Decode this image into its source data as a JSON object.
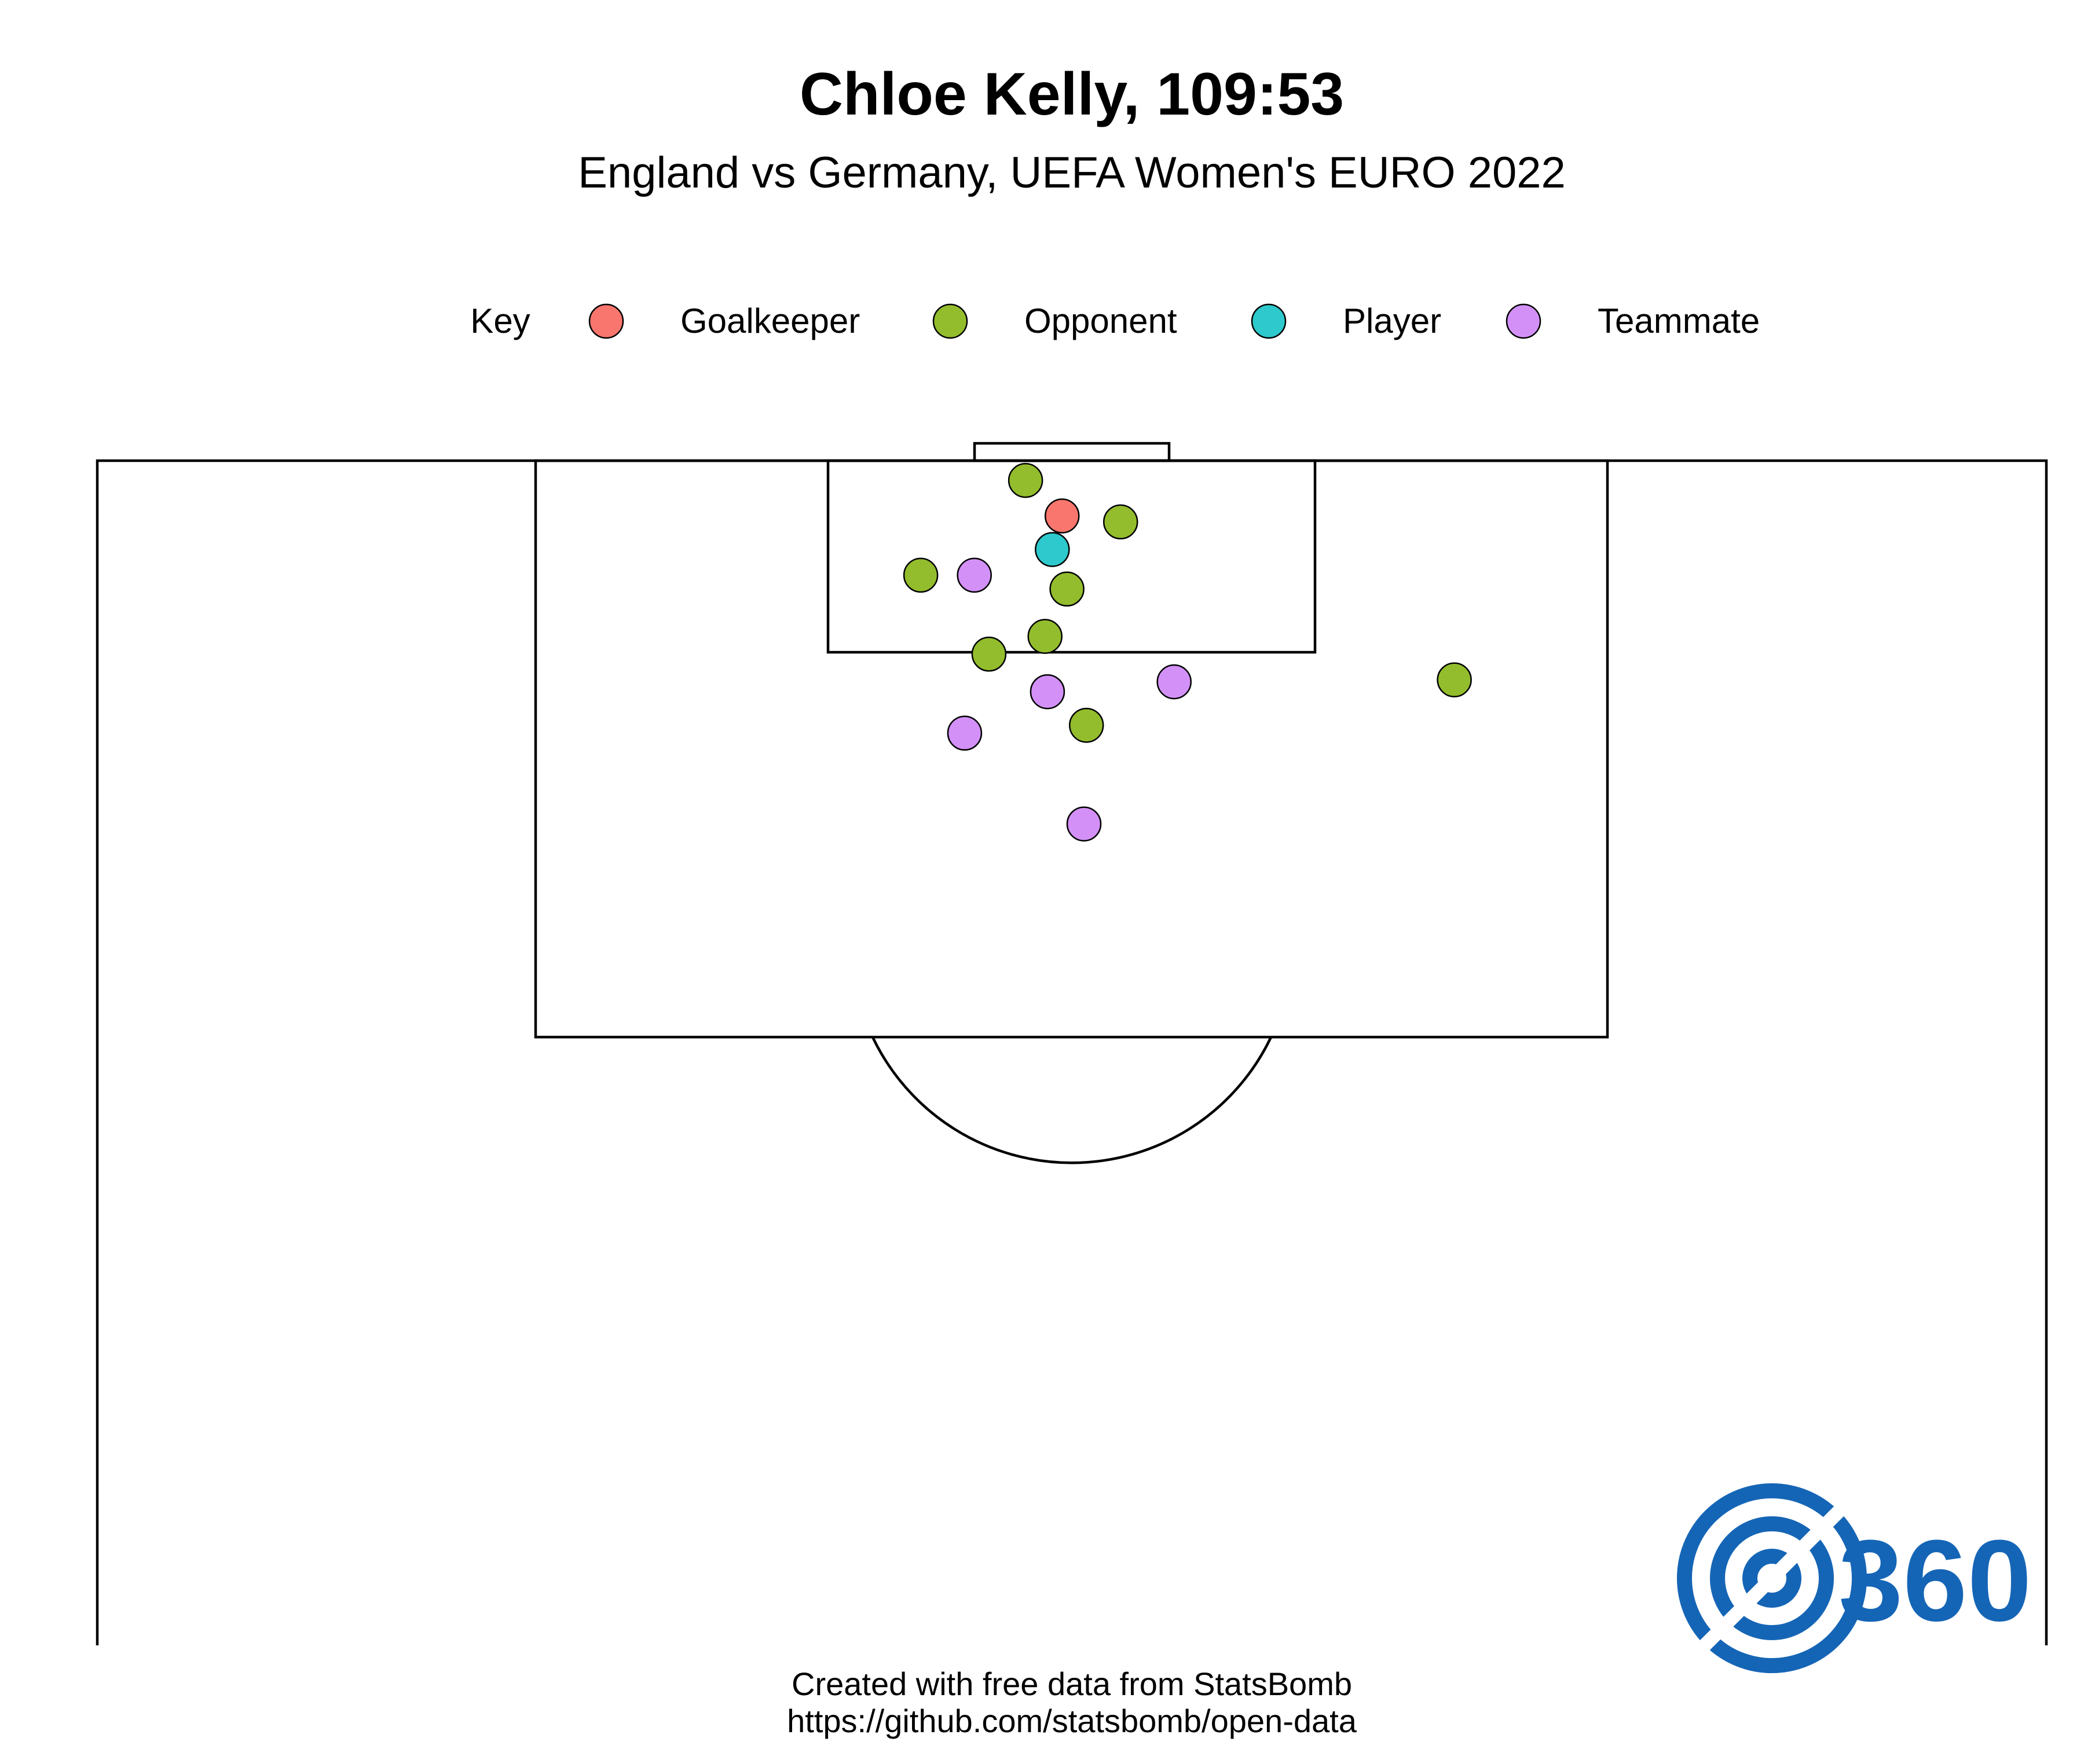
{
  "header": {
    "title": "Chloe Kelly, 109:53",
    "subtitle": "England vs Germany, UEFA Women's EURO 2022"
  },
  "legend": {
    "label": "Key",
    "items": [
      {
        "label": "Goalkeeper",
        "color": "#F8766D"
      },
      {
        "label": "Opponent",
        "color": "#93BD2D"
      },
      {
        "label": "Player",
        "color": "#2DC9CC"
      },
      {
        "label": "Teammate",
        "color": "#D391F8"
      }
    ]
  },
  "logo": {
    "text": "360",
    "color": "#1565B6",
    "icon": "target-icon"
  },
  "footer": {
    "line1": "Created with free data from StatsBomb",
    "line2": "https://github.com/statsbomb/open-data"
  },
  "chart_data": {
    "type": "scatter",
    "xlim": [
      0,
      80
    ],
    "ylim": [
      60,
      122
    ],
    "colors": {
      "Goalkeeper": "#F8766D",
      "Opponent": "#93BD2D",
      "Player": "#2DC9CC",
      "Teammate": "#D391F8"
    },
    "points": [
      {
        "role": "Opponent",
        "x": 38.1,
        "y": 119.0
      },
      {
        "role": "Goalkeeper",
        "x": 39.6,
        "y": 117.2
      },
      {
        "role": "Opponent",
        "x": 42.0,
        "y": 116.9
      },
      {
        "role": "Player",
        "x": 39.2,
        "y": 115.5
      },
      {
        "role": "Opponent",
        "x": 33.8,
        "y": 114.2
      },
      {
        "role": "Teammate",
        "x": 36.0,
        "y": 114.2
      },
      {
        "role": "Opponent",
        "x": 39.8,
        "y": 113.5
      },
      {
        "role": "Opponent",
        "x": 38.9,
        "y": 111.1
      },
      {
        "role": "Opponent",
        "x": 36.6,
        "y": 110.2
      },
      {
        "role": "Teammate",
        "x": 44.2,
        "y": 108.8
      },
      {
        "role": "Opponent",
        "x": 55.7,
        "y": 108.9
      },
      {
        "role": "Teammate",
        "x": 39.0,
        "y": 108.3
      },
      {
        "role": "Opponent",
        "x": 40.6,
        "y": 106.6
      },
      {
        "role": "Teammate",
        "x": 35.6,
        "y": 106.2
      },
      {
        "role": "Teammate",
        "x": 40.5,
        "y": 101.6
      }
    ]
  }
}
